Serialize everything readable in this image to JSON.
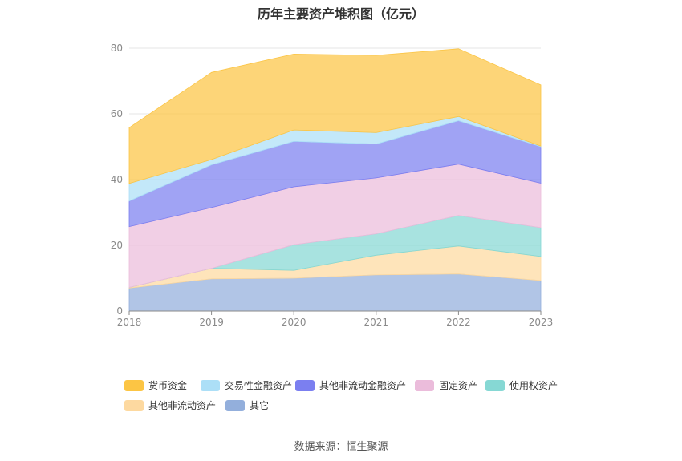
{
  "title": "历年主要资产堆积图（亿元）",
  "source": "数据来源：恒生聚源",
  "chart_data": {
    "type": "area",
    "stacked": true,
    "x": [
      "2018",
      "2019",
      "2020",
      "2021",
      "2022",
      "2023"
    ],
    "ylim": [
      0,
      80
    ],
    "yticks": [
      "0",
      "20",
      "40",
      "60",
      "80"
    ],
    "grid": true,
    "legend_position": "bottom",
    "series": [
      {
        "name": "其它",
        "color": "#93afdc",
        "values": [
          7.0,
          9.8,
          10.0,
          11.0,
          11.3,
          9.3
        ]
      },
      {
        "name": "其他非流动资产",
        "color": "#fdd9a0",
        "values": [
          0.2,
          3.2,
          2.4,
          6.0,
          8.5,
          7.3
        ]
      },
      {
        "name": "使用权资产",
        "color": "#86d8d4",
        "values": [
          0.0,
          0.0,
          7.8,
          6.5,
          9.3,
          8.8
        ]
      },
      {
        "name": "固定资产",
        "color": "#ebbcdb",
        "values": [
          18.5,
          18.5,
          17.6,
          17.0,
          15.6,
          13.5
        ]
      },
      {
        "name": "其他非流动金融资产",
        "color": "#7b7ff0",
        "values": [
          7.8,
          13.0,
          13.8,
          10.3,
          13.2,
          11.1
        ]
      },
      {
        "name": "交易性金融资产",
        "color": "#acdff7",
        "values": [
          5.3,
          1.6,
          3.5,
          3.5,
          1.3,
          0.2
        ]
      },
      {
        "name": "货币资金",
        "color": "#fcc544",
        "values": [
          17.0,
          26.5,
          23.1,
          23.5,
          20.6,
          18.6
        ]
      }
    ],
    "legend_order": [
      "货币资金",
      "交易性金融资产",
      "其他非流动金融资产",
      "固定资产",
      "使用权资产",
      "其他非流动资产",
      "其它"
    ]
  }
}
